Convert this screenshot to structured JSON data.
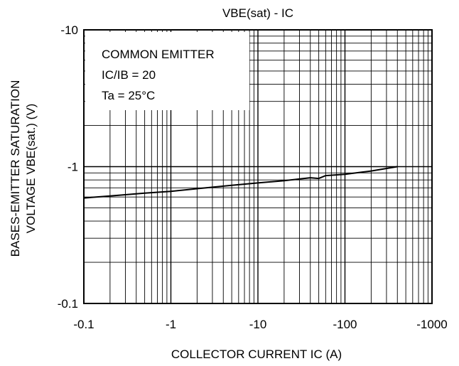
{
  "chart_data": {
    "type": "line",
    "title": "VBE(sat) - IC",
    "xlabel": "COLLECTOR CURRENT IC (A)",
    "ylabel_lines": [
      "BASES-EMITTER SATURATION",
      "VOLTAGE VBE(sat.) (V)"
    ],
    "x_scale": "log",
    "y_scale": "log",
    "xlim": [
      -0.1,
      -1000
    ],
    "ylim": [
      -0.1,
      -10
    ],
    "x_ticks": [
      {
        "value": -0.1,
        "label": "-0.1"
      },
      {
        "value": -1,
        "label": "-1"
      },
      {
        "value": -10,
        "label": "-10"
      },
      {
        "value": -100,
        "label": "-100"
      },
      {
        "value": -1000,
        "label": "-1000"
      }
    ],
    "y_ticks": [
      {
        "value": -0.1,
        "label": "-0.1"
      },
      {
        "value": -1,
        "label": "-1"
      },
      {
        "value": -10,
        "label": "-10"
      }
    ],
    "grid": true,
    "annotations": [
      "COMMON EMITTER",
      "IC/IB = 20",
      "Ta = 25°C"
    ],
    "series": [
      {
        "x": [
          -0.1,
          -0.2,
          -0.5,
          -1,
          -2,
          -5,
          -10,
          -20,
          -40,
          -50,
          -60,
          -100,
          -200,
          -400
        ],
        "y": [
          -0.59,
          -0.61,
          -0.64,
          -0.66,
          -0.69,
          -0.73,
          -0.76,
          -0.79,
          -0.83,
          -0.82,
          -0.86,
          -0.88,
          -0.93,
          -1.0
        ]
      }
    ]
  }
}
